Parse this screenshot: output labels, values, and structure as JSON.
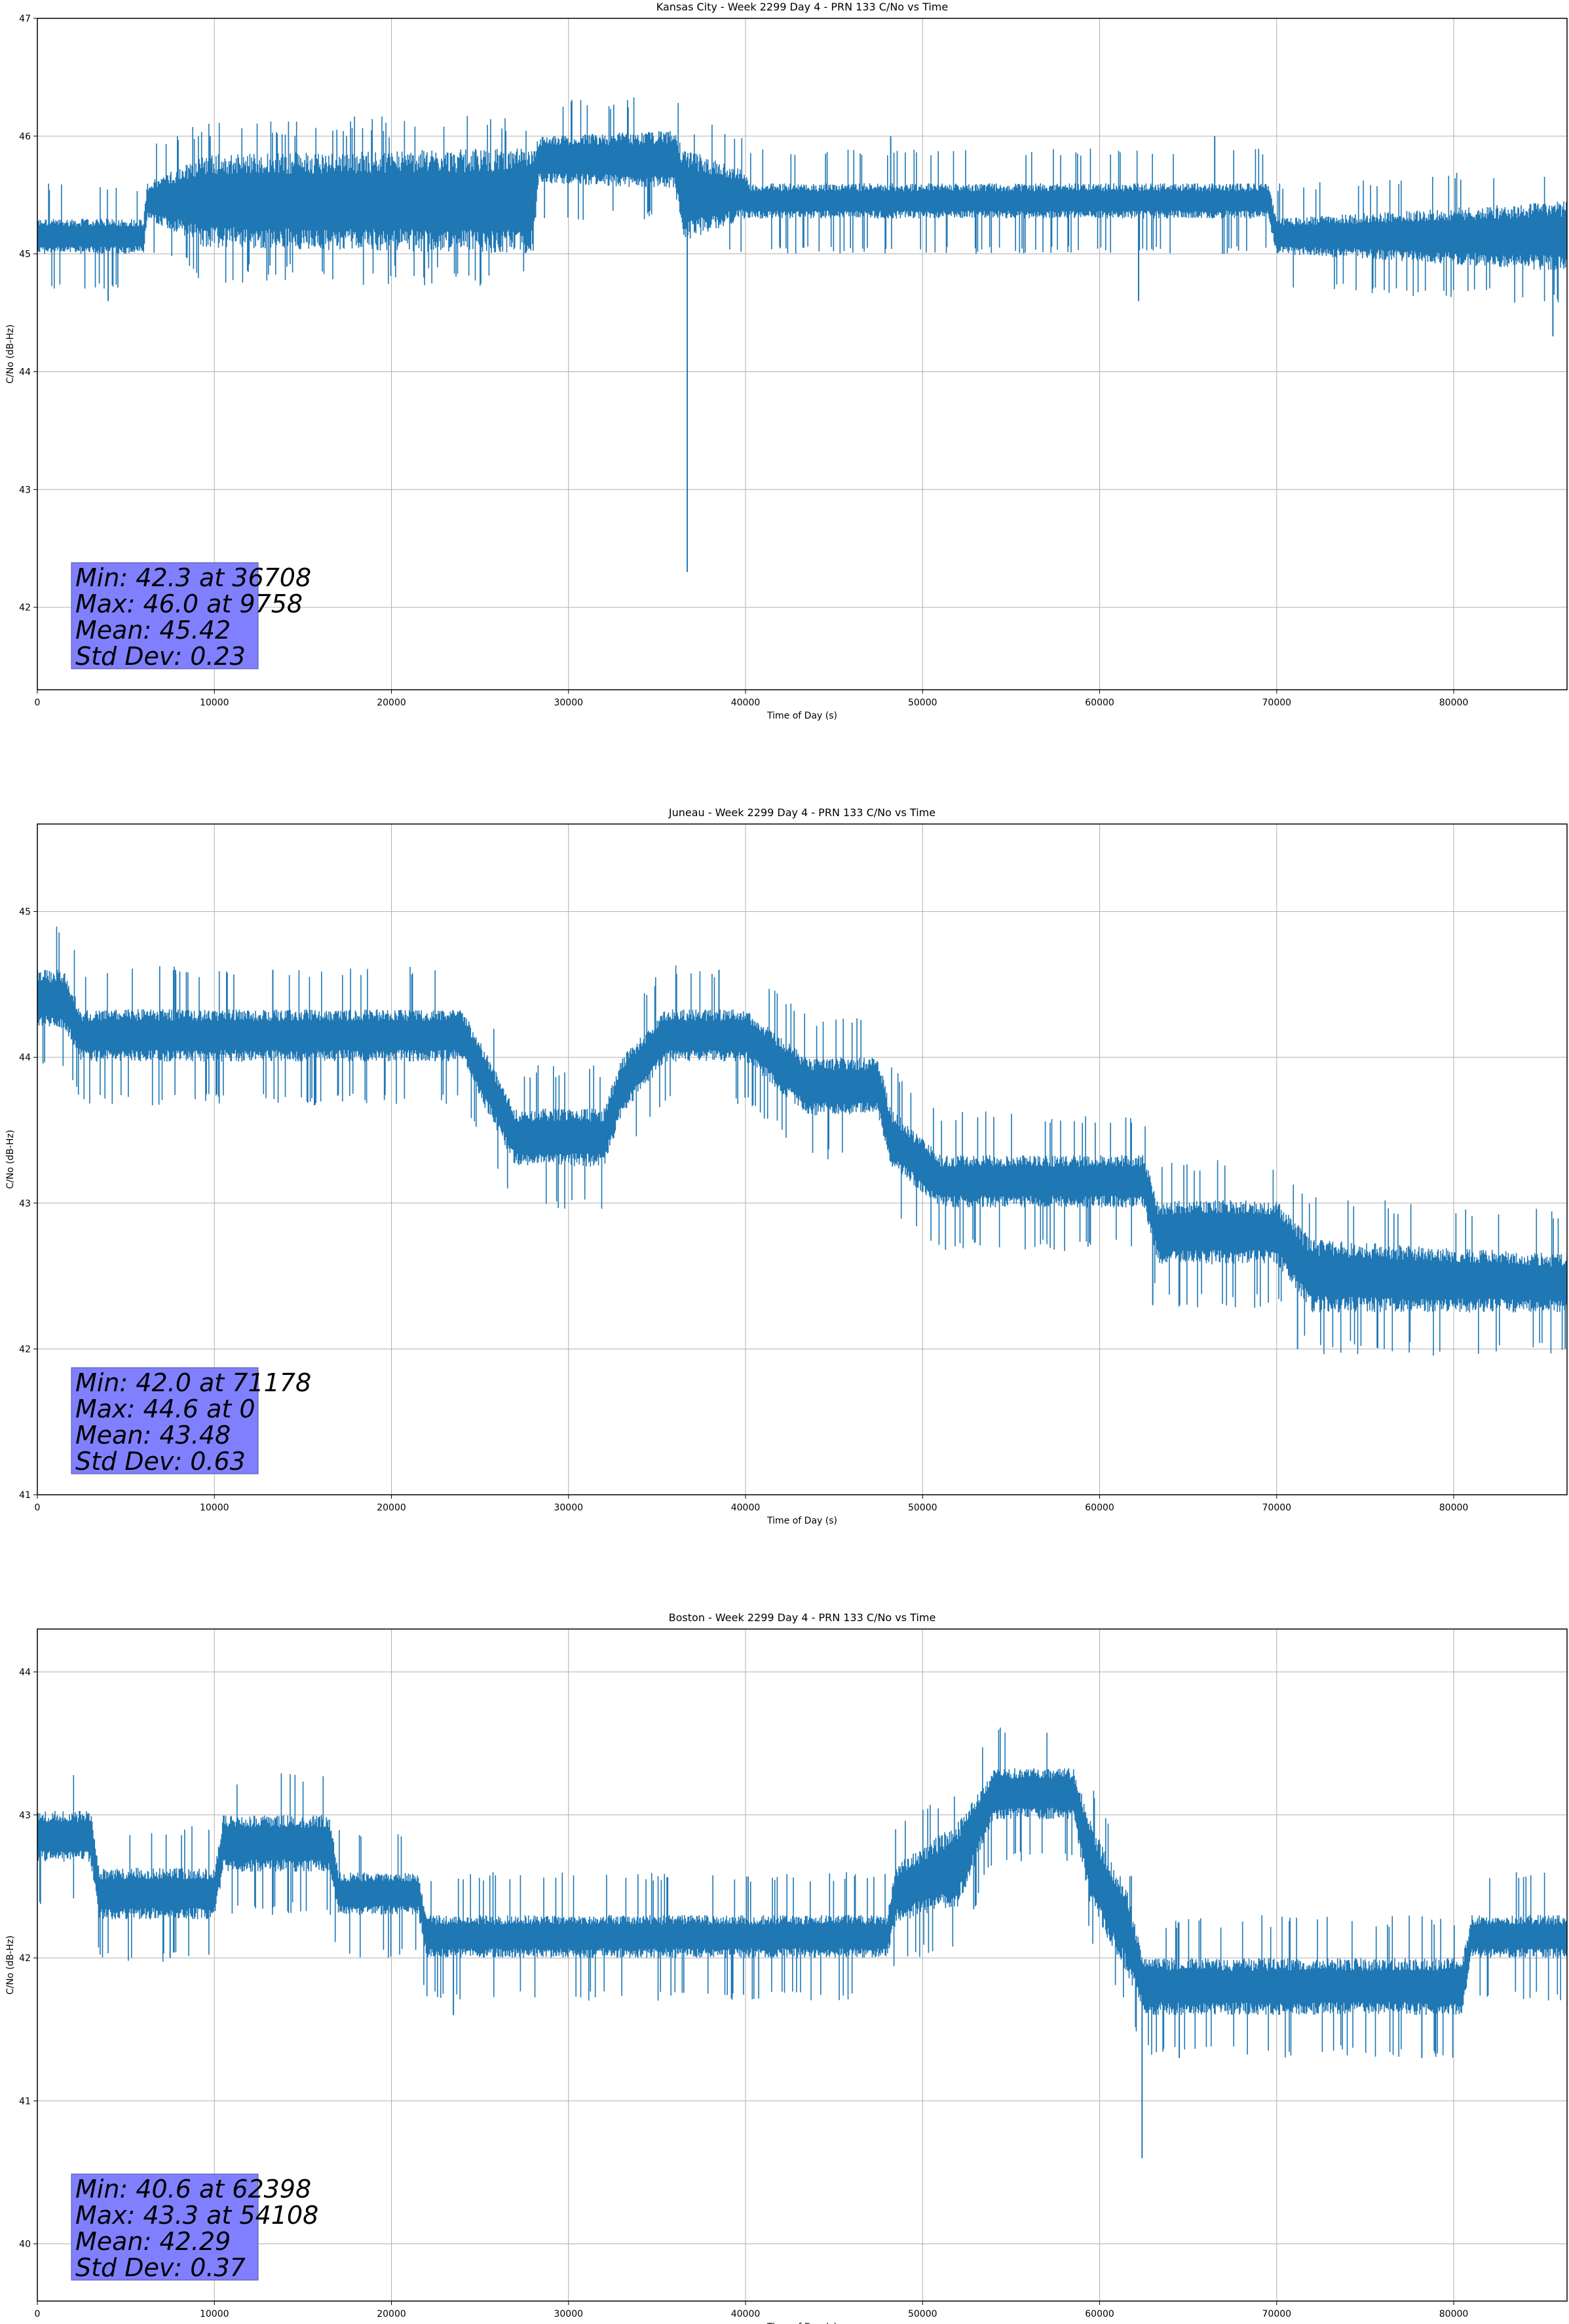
{
  "chart_data": [
    {
      "type": "line",
      "title": "Kansas City - Week 2299 Day 4 - PRN 133 C/No vs Time",
      "xlabel": "Time of Day (s)",
      "ylabel": "C/No (dB-Hz)",
      "xlim": [
        0,
        86400
      ],
      "ylim": [
        41.3,
        47.0
      ],
      "xticks": [
        0,
        10000,
        20000,
        30000,
        40000,
        50000,
        60000,
        70000,
        80000
      ],
      "yticks": [
        42,
        43,
        44,
        45,
        46,
        47
      ],
      "grid": true,
      "color": "#1f77b4",
      "trend": {
        "x": [
          0,
          6000,
          6200,
          9500,
          28000,
          28300,
          36000,
          36500,
          40000,
          40300,
          69500,
          70000,
          86400
        ],
        "y": [
          45.15,
          45.15,
          45.45,
          45.45,
          45.45,
          45.8,
          45.8,
          45.5,
          45.5,
          45.45,
          45.45,
          45.15,
          45.15
        ],
        "band": [
          0.15,
          0.15,
          0.15,
          0.4,
          0.45,
          0.2,
          0.25,
          0.4,
          0.2,
          0.15,
          0.15,
          0.15,
          0.3
        ]
      },
      "spikes": [
        {
          "x": 36708,
          "y": 42.3
        },
        {
          "x": 9758,
          "y": 46.0
        },
        {
          "x": 62200,
          "y": 44.6
        },
        {
          "x": 85600,
          "y": 44.3
        },
        {
          "x": 4000,
          "y": 44.6
        },
        {
          "x": 66500,
          "y": 46.0
        },
        {
          "x": 48200,
          "y": 46.0
        }
      ],
      "stats": {
        "min": "Min: 42.3 at 36708",
        "max": "Max: 46.0 at 9758",
        "mean": "Mean: 45.42",
        "std": "Std Dev: 0.23"
      },
      "legend_box_color": "#8080ff"
    },
    {
      "type": "line",
      "title": "Juneau - Week 2299 Day 4 - PRN 133 C/No vs Time",
      "xlabel": "Time of Day (s)",
      "ylabel": "C/No (dB-Hz)",
      "xlim": [
        0,
        86400
      ],
      "ylim": [
        41.0,
        45.6
      ],
      "xticks": [
        0,
        10000,
        20000,
        30000,
        40000,
        50000,
        60000,
        70000,
        80000
      ],
      "yticks": [
        41,
        42,
        43,
        44,
        45
      ],
      "grid": true,
      "color": "#1f77b4",
      "trend": {
        "x": [
          0,
          1500,
          2500,
          24000,
          25500,
          27000,
          32000,
          33000,
          35500,
          40000,
          43500,
          47500,
          48200,
          51000,
          62500,
          63300,
          70000,
          72000,
          86400
        ],
        "y": [
          44.4,
          44.4,
          44.15,
          44.15,
          43.8,
          43.45,
          43.45,
          43.8,
          44.15,
          44.15,
          43.8,
          43.8,
          43.45,
          43.15,
          43.15,
          42.8,
          42.8,
          42.5,
          42.45
        ],
        "band": [
          0.2,
          0.2,
          0.18,
          0.18,
          0.2,
          0.2,
          0.2,
          0.2,
          0.18,
          0.18,
          0.2,
          0.2,
          0.2,
          0.18,
          0.18,
          0.22,
          0.22,
          0.25,
          0.2
        ]
      },
      "spikes": [
        {
          "x": 71178,
          "y": 42.0
        },
        {
          "x": 0,
          "y": 44.6
        },
        {
          "x": 7800,
          "y": 44.6
        },
        {
          "x": 13300,
          "y": 44.6
        },
        {
          "x": 38500,
          "y": 44.6
        },
        {
          "x": 86300,
          "y": 42.0
        },
        {
          "x": 63000,
          "y": 42.3
        }
      ],
      "stats": {
        "min": "Min: 42.0 at 71178",
        "max": "Max: 44.6 at 0",
        "mean": "Mean: 43.48",
        "std": "Std Dev: 0.63"
      },
      "legend_box_color": "#8080ff"
    },
    {
      "type": "line",
      "title": "Boston - Week 2299 Day 4 - PRN 133 C/No vs Time",
      "xlabel": "Time of Day (s)",
      "ylabel": "C/No (dB-Hz)",
      "xlim": [
        0,
        86400
      ],
      "ylim": [
        39.6,
        44.3
      ],
      "xticks": [
        0,
        10000,
        20000,
        30000,
        40000,
        50000,
        60000,
        70000,
        80000
      ],
      "yticks": [
        40,
        41,
        42,
        43,
        44
      ],
      "grid": true,
      "color": "#1f77b4",
      "trend": {
        "x": [
          0,
          3000,
          3500,
          10000,
          10500,
          16500,
          17000,
          21500,
          22000,
          48000,
          48500,
          52000,
          54000,
          58500,
          59500,
          61500,
          62500,
          75000,
          80500,
          81000,
          86400
        ],
        "y": [
          42.85,
          42.85,
          42.45,
          42.45,
          42.8,
          42.8,
          42.45,
          42.45,
          42.15,
          42.15,
          42.45,
          42.65,
          43.15,
          43.15,
          42.65,
          42.2,
          41.8,
          41.8,
          41.8,
          42.15,
          42.15
        ],
        "band": [
          0.18,
          0.18,
          0.18,
          0.18,
          0.2,
          0.2,
          0.15,
          0.15,
          0.15,
          0.15,
          0.2,
          0.3,
          0.18,
          0.18,
          0.3,
          0.3,
          0.2,
          0.2,
          0.2,
          0.15,
          0.15
        ]
      },
      "spikes": [
        {
          "x": 62398,
          "y": 40.6
        },
        {
          "x": 54108,
          "y": 43.3
        },
        {
          "x": 7500,
          "y": 42.0
        },
        {
          "x": 23500,
          "y": 41.6
        },
        {
          "x": 78200,
          "y": 41.3
        },
        {
          "x": 64500,
          "y": 41.3
        }
      ],
      "stats": {
        "min": "Min: 40.6 at 62398",
        "max": "Max: 43.3 at 54108",
        "mean": "Mean: 42.29",
        "std": "Std Dev: 0.37"
      },
      "legend_box_color": "#8080ff"
    }
  ]
}
